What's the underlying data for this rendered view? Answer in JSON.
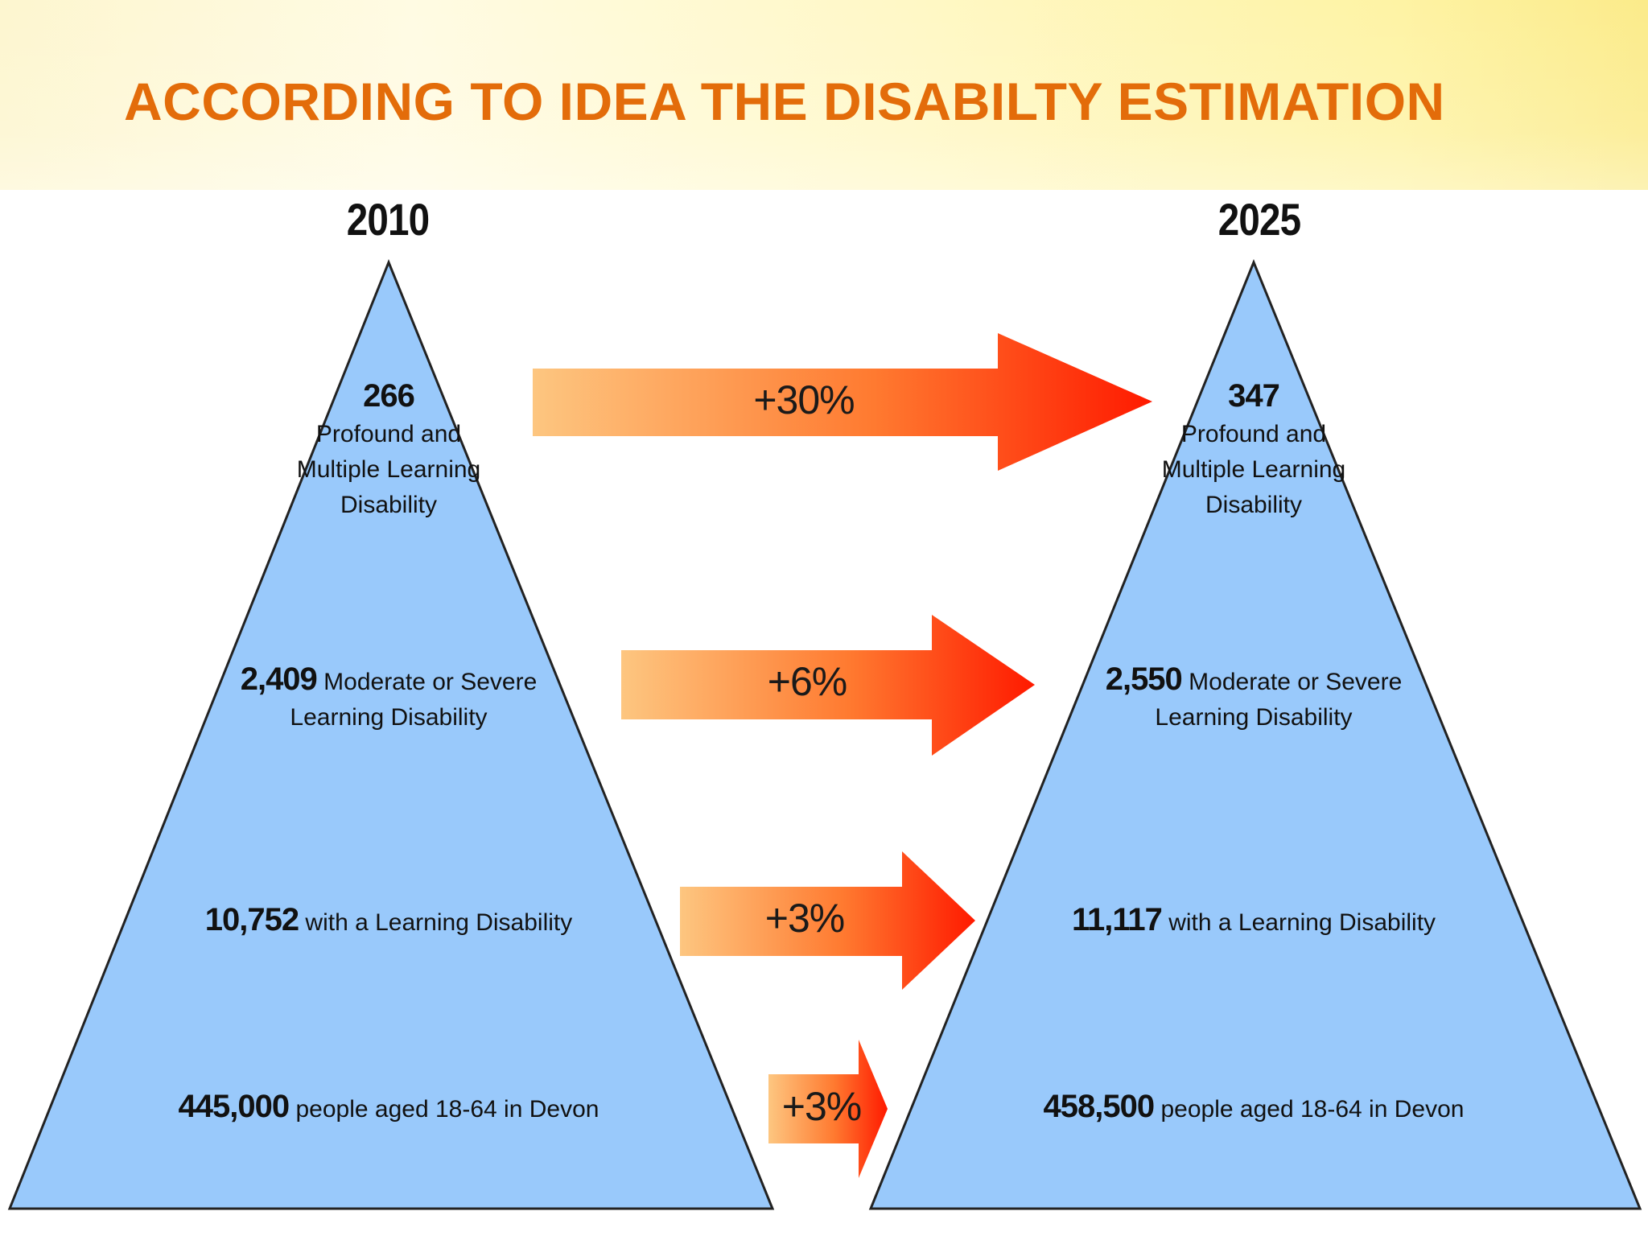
{
  "title": "ACCORDING TO IDEA THE DISABILTY ESTIMATION",
  "colors": {
    "title": "#e36c0a",
    "pyramid_fill": "#99c9fb",
    "pyramid_stroke": "#222222",
    "arrow_start": "#fdc680",
    "arrow_end": "#ff1a00"
  },
  "pyramids": [
    {
      "year": "2010",
      "tiers": [
        {
          "number": "266",
          "text": "Profound and Multiple Learning Disability",
          "lines": [
            "Profound and",
            "Multiple Learning",
            "Disability"
          ]
        },
        {
          "number": "2,409",
          "text": " Moderate or Severe Learning Disability",
          "line1": " Moderate or Severe",
          "line2": "Learning Disability"
        },
        {
          "number": "10,752",
          "text": " with a Learning Disability"
        },
        {
          "number": "445,000",
          "text": " people aged 18-64 in Devon"
        }
      ]
    },
    {
      "year": "2025",
      "tiers": [
        {
          "number": "347",
          "text": "Profound and Multiple Learning Disability",
          "lines": [
            "Profound and",
            "Multiple Learning",
            "Disability"
          ]
        },
        {
          "number": "2,550",
          "text": " Moderate or Severe Learning Disability",
          "line1": " Moderate or Severe",
          "line2": "Learning Disability"
        },
        {
          "number": "11,117",
          "text": " with a Learning Disability"
        },
        {
          "number": "458,500",
          "text": " people aged 18-64 in Devon"
        }
      ]
    }
  ],
  "changes": [
    "+30%",
    "+6%",
    "+3%",
    "+3%"
  ]
}
